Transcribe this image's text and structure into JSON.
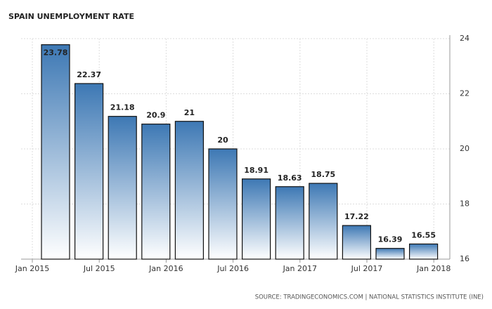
{
  "chart_data": {
    "type": "bar",
    "title": "SPAIN UNEMPLOYMENT RATE",
    "source": "SOURCE: TRADINGECONOMICS.COM | NATIONAL STATISTICS INSTITUTE (INE)",
    "xtick_labels": [
      "Jan 2015",
      "Jul 2015",
      "Jan 2016",
      "Jul 2016",
      "Jan 2017",
      "Jul 2017",
      "Jan 2018"
    ],
    "values": [
      23.78,
      22.37,
      21.18,
      20.9,
      21,
      20,
      18.91,
      18.63,
      18.75,
      17.22,
      16.39,
      16.55
    ],
    "color": "#3d78b4",
    "ylim": [
      16,
      24
    ],
    "yticks": [
      16,
      18,
      20,
      22,
      24
    ],
    "grid": true
  }
}
